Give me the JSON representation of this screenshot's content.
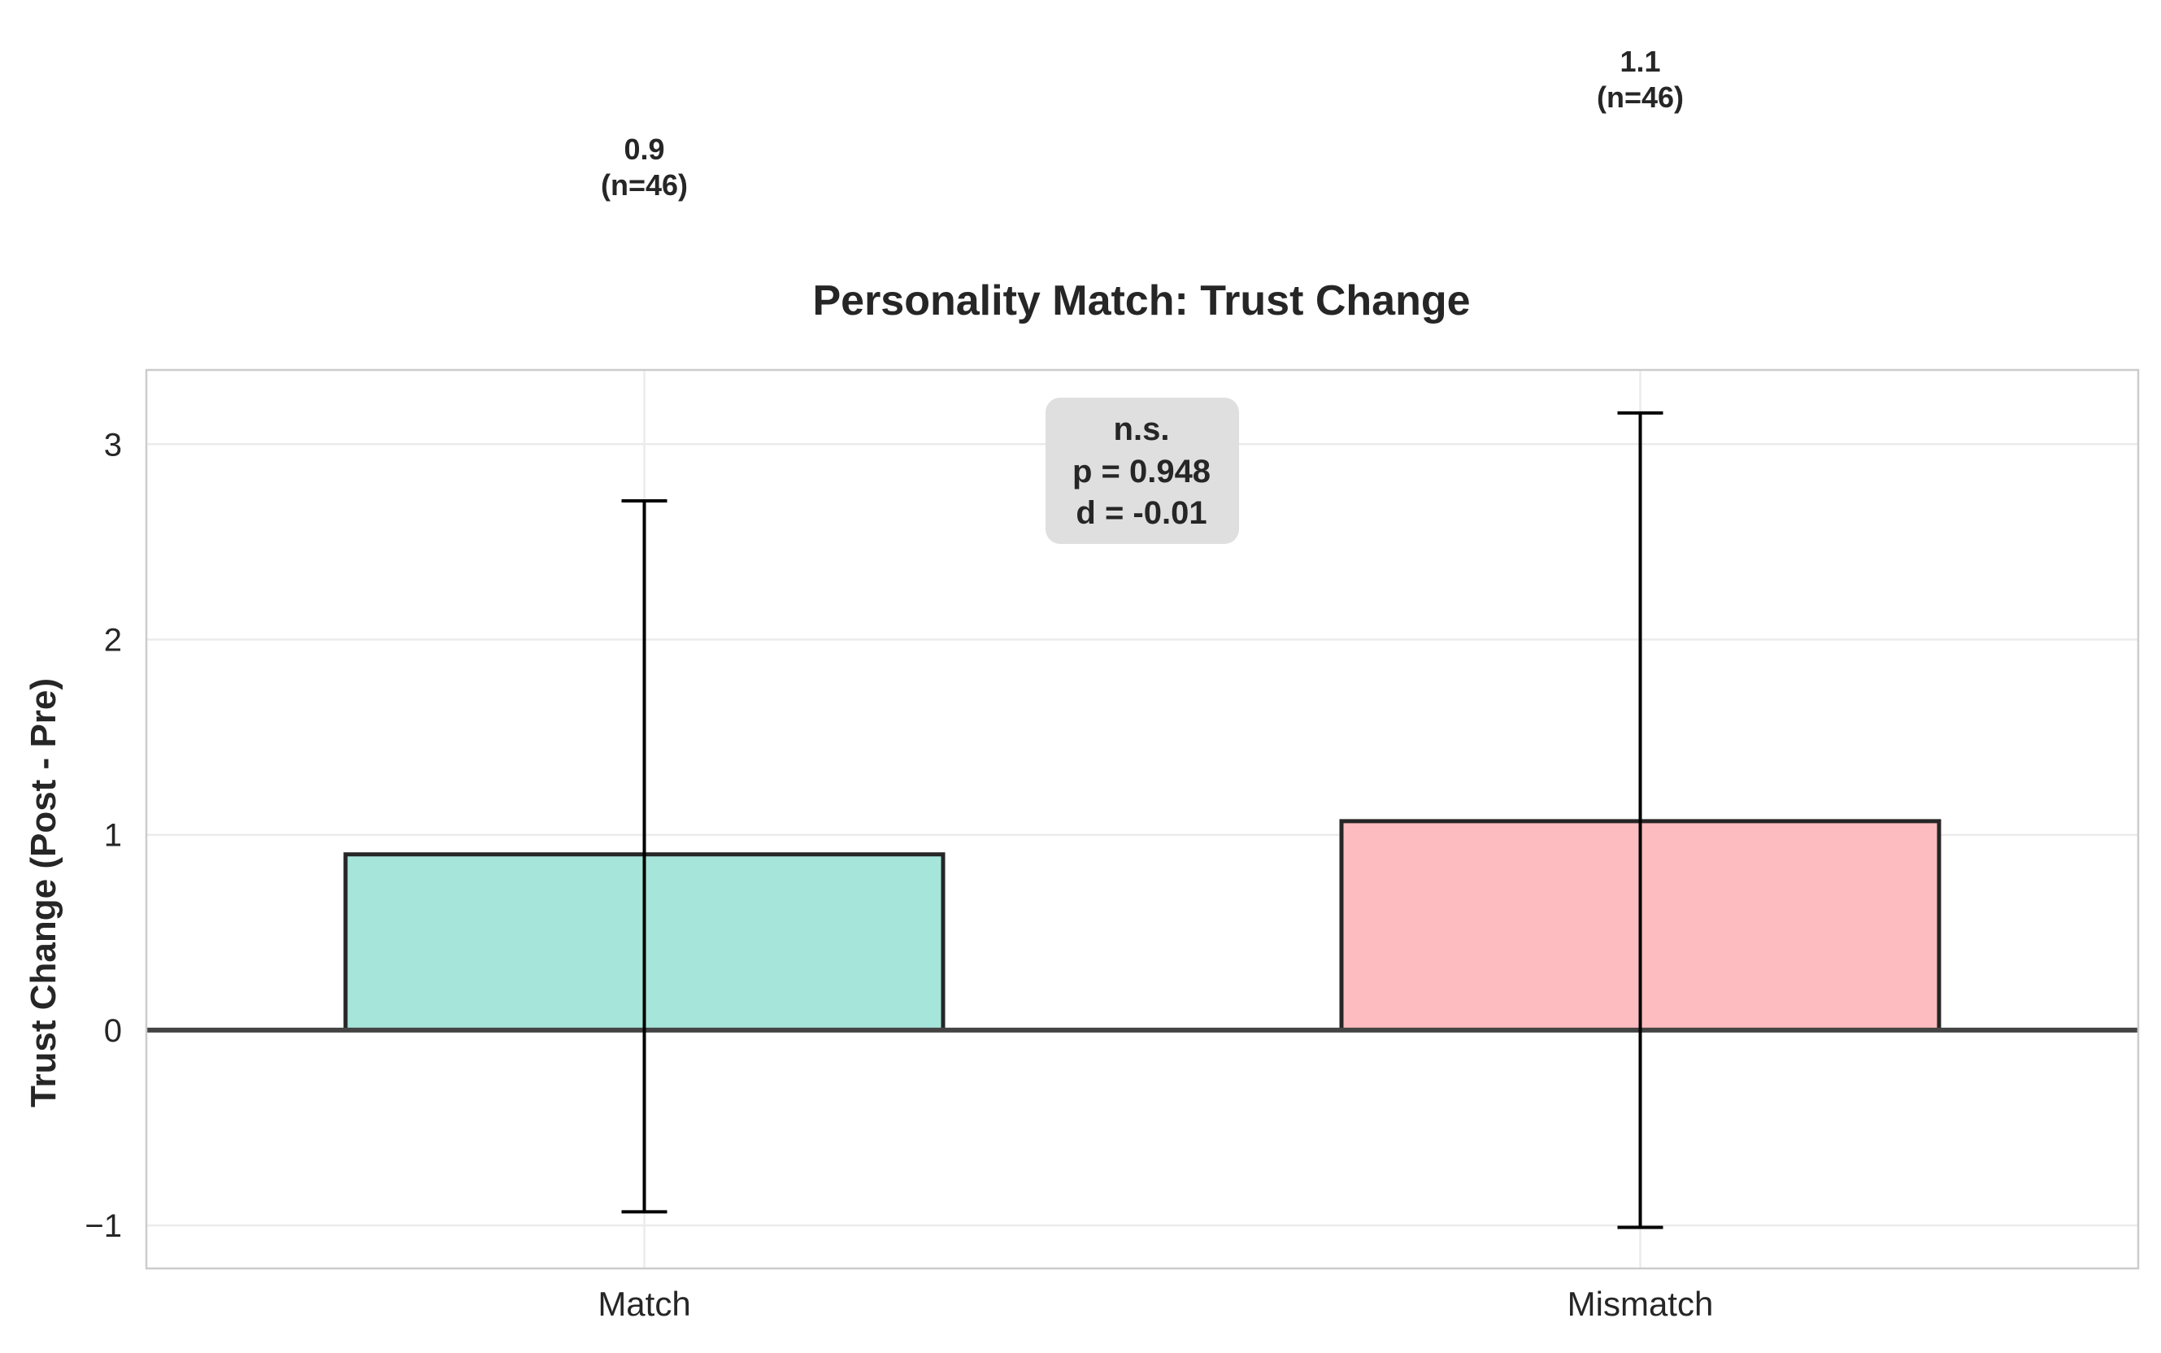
{
  "chart_data": {
    "type": "bar",
    "title": "Personality Match: Trust Change",
    "xlabel": "",
    "ylabel": "Trust Change (Post - Pre)",
    "categories": [
      "Match",
      "Mismatch"
    ],
    "values": [
      0.9,
      1.07
    ],
    "error_low": [
      -0.93,
      -1.01
    ],
    "error_high": [
      2.71,
      3.16
    ],
    "bar_labels": [
      {
        "value": "0.9",
        "n": "(n=46)"
      },
      {
        "value": "1.1",
        "n": "(n=46)"
      }
    ],
    "bar_colors": [
      "#a6e5da",
      "#fdbcbf"
    ],
    "ylim": [
      -1.22,
      3.38
    ],
    "yticks": [
      -1,
      0,
      1,
      2,
      3
    ],
    "ytick_labels": [
      "−1",
      "0",
      "1",
      "2",
      "3"
    ],
    "grid": true,
    "annotation": {
      "line1": "n.s.",
      "line2": "p = 0.948",
      "line3": "d = -0.01"
    }
  }
}
